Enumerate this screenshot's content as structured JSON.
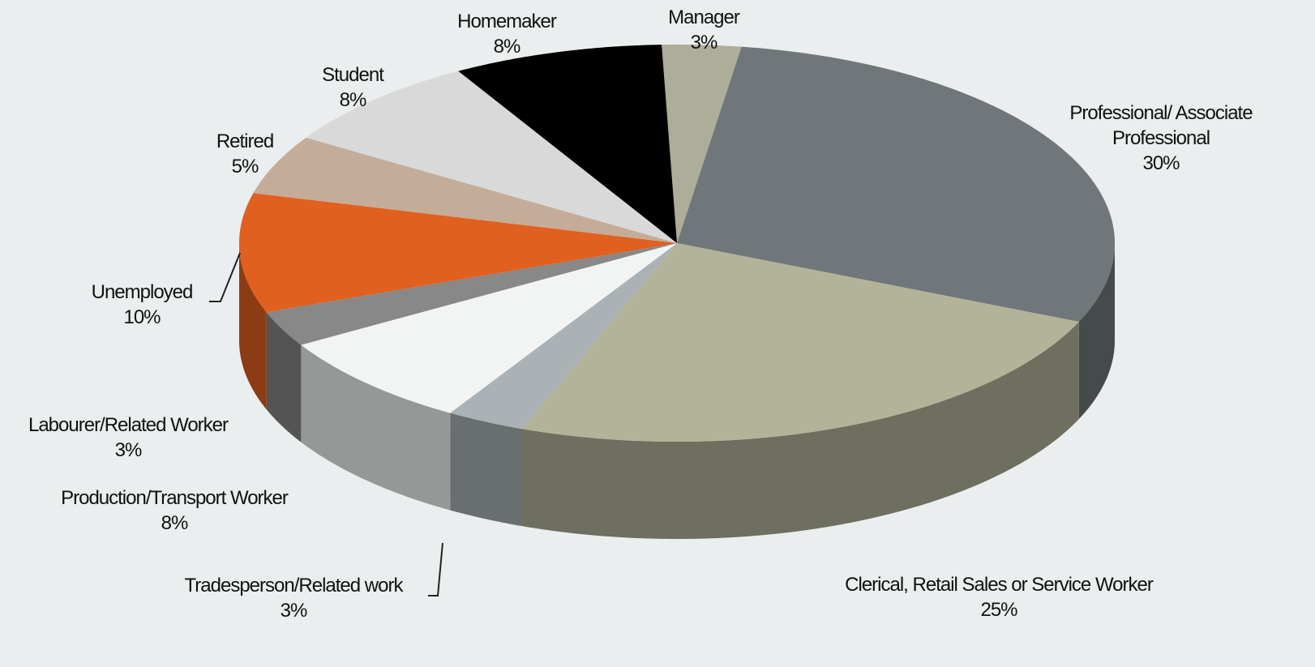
{
  "chart_data": {
    "type": "pie",
    "categories": [
      "Manager",
      "Professional/ Associate Professional",
      "Clerical, Retail Sales or Service Worker",
      "Tradesperson/Related work",
      "Production/Transport Worker",
      "Labourer/Related Worker",
      "Unemployed",
      "Retired",
      "Student",
      "Homemaker"
    ],
    "values": [
      3,
      30,
      25,
      3,
      8,
      3,
      10,
      5,
      8,
      8
    ],
    "value_labels": [
      "3%",
      "30%",
      "25%",
      "3%",
      "8%",
      "3%",
      "10%",
      "5%",
      "8%",
      "8%"
    ],
    "colors": [
      "#adad9a",
      "#6f777a",
      "#b2b398",
      "#aab2b5",
      "#f2f4f3",
      "#888888",
      "#e06020",
      "#c4ac98",
      "#d8d9d8",
      "#000000"
    ]
  }
}
